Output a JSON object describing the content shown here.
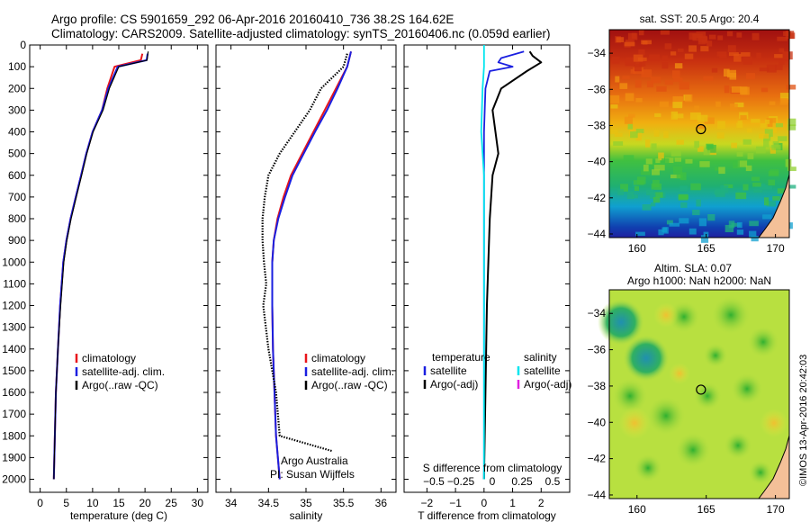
{
  "header": {
    "title_line1": "Argo profile: CS 5901659_292 06-Apr-2016 20160410_736 38.2S 164.62E",
    "title_line2": "Climatology: CARS2009. Satellite-adjusted climatology: synTS_20160406.nc (0.059d earlier)"
  },
  "footer": {
    "stamp": "©IMOS 13-Apr-2016 20:42:03"
  },
  "colors": {
    "climatology": "#e8151b",
    "satellite_adj": "#1a1fe0",
    "argo": "#000000",
    "cyan": "#00e5ee",
    "magenta": "#e020e0"
  },
  "chart_data": [
    {
      "type": "line",
      "xlabel": "temperature (deg C)",
      "xlim": [
        -2,
        32
      ],
      "xticks": [
        0,
        5,
        10,
        15,
        20,
        25,
        30
      ],
      "ylim": [
        0,
        2060
      ],
      "yticks": [
        0,
        100,
        200,
        300,
        400,
        500,
        600,
        700,
        800,
        900,
        1000,
        1100,
        1200,
        1300,
        1400,
        1500,
        1600,
        1700,
        1800,
        1900,
        2000
      ],
      "legend": [
        "climatology",
        "satellite-adj. clim.",
        "Argo(..raw -QC)"
      ],
      "legend_position": "lower-left",
      "series": [
        {
          "name": "climatology",
          "x": [
            19.5,
            19.2,
            14.2,
            12.8,
            11.8,
            10.0,
            8.8,
            7.8,
            6.8,
            5.8,
            5.0,
            4.4,
            3.8,
            3.4,
            3.0,
            2.6
          ],
          "y": [
            40,
            70,
            100,
            200,
            300,
            400,
            500,
            600,
            700,
            800,
            900,
            1000,
            1200,
            1400,
            1600,
            2000
          ]
        },
        {
          "name": "satellite-adj. clim.",
          "x": [
            20.5,
            20.3,
            14.8,
            13.0,
            11.8,
            10.0,
            8.8,
            7.8,
            6.8,
            5.8,
            5.0,
            4.4,
            3.8,
            3.4,
            3.0,
            2.6
          ],
          "y": [
            40,
            70,
            100,
            200,
            300,
            400,
            500,
            600,
            700,
            800,
            900,
            1000,
            1200,
            1400,
            1600,
            2000
          ]
        },
        {
          "name": "Argo(..raw -QC)",
          "x": [
            20.6,
            20.4,
            15.0,
            13.2,
            12.0,
            10.1,
            8.9,
            7.9,
            6.9,
            5.9,
            5.1,
            4.5,
            3.9,
            3.4,
            3.0,
            2.6
          ],
          "y": [
            30,
            70,
            100,
            200,
            300,
            400,
            500,
            600,
            700,
            800,
            900,
            1000,
            1200,
            1400,
            1600,
            2000
          ]
        }
      ]
    },
    {
      "type": "line",
      "xlabel": "salinity",
      "xlim": [
        33.8,
        36.2
      ],
      "xticks": [
        34,
        34.5,
        35,
        35.5,
        36
      ],
      "ylim": [
        0,
        2060
      ],
      "legend": [
        "climatology",
        "satellite-adj. clim.",
        "Argo(..raw -QC)"
      ],
      "legend_position": "lower-right",
      "annotations": [
        "Argo Australia",
        "PI: Susan Wijffels"
      ],
      "series": [
        {
          "name": "climatology",
          "x": [
            35.6,
            35.55,
            35.4,
            35.25,
            35.1,
            34.95,
            34.8,
            34.7,
            34.62,
            34.57,
            34.55,
            34.55,
            34.56,
            34.58,
            34.6,
            34.65
          ],
          "y": [
            30,
            100,
            200,
            300,
            400,
            500,
            600,
            700,
            800,
            900,
            1000,
            1200,
            1400,
            1600,
            1800,
            2000
          ]
        },
        {
          "name": "satellite-adj. clim.",
          "x": [
            35.6,
            35.55,
            35.42,
            35.28,
            35.12,
            34.97,
            34.82,
            34.72,
            34.63,
            34.57,
            34.55,
            34.55,
            34.56,
            34.58,
            34.6,
            34.65
          ],
          "y": [
            30,
            100,
            200,
            300,
            400,
            500,
            600,
            700,
            800,
            900,
            1000,
            1200,
            1400,
            1600,
            1800,
            2000
          ]
        },
        {
          "name": "Argo(..raw -QC)",
          "x": [
            35.55,
            35.5,
            35.2,
            35.05,
            34.85,
            34.65,
            34.5,
            34.45,
            34.42,
            34.42,
            34.44,
            34.47,
            34.43,
            34.5,
            34.6,
            34.65,
            35.35
          ],
          "y": [
            40,
            100,
            200,
            300,
            400,
            500,
            600,
            700,
            800,
            900,
            1000,
            1100,
            1200,
            1400,
            1600,
            1800,
            1870
          ]
        }
      ]
    },
    {
      "type": "line",
      "xlabel": "T difference from climatology",
      "xlabel_top": "S difference from climatology",
      "xlim": [
        -2.8,
        3.0
      ],
      "xticks": [
        -2,
        -1,
        0,
        1,
        2
      ],
      "xticks_top": [
        "-0.5",
        "-0.25",
        "0",
        "0.25",
        "0.5"
      ],
      "ylim": [
        0,
        2060
      ],
      "legend": [
        "temperature",
        "satellite",
        "Argo(-adj)",
        "salinity",
        "satellite",
        "Argo(-adj)"
      ],
      "legend_position": "lower-center",
      "series": [
        {
          "name": "satellite",
          "group": "temperature",
          "x": [
            1.4,
            0.6,
            0.5,
            1.0,
            0.2,
            0.05,
            0.0,
            0.0,
            0.0,
            0.0,
            0.0,
            0.0,
            0.0
          ],
          "y": [
            30,
            60,
            80,
            100,
            120,
            200,
            400,
            600,
            800,
            1200,
            1500,
            1800,
            2000
          ]
        },
        {
          "name": "Argo(-adj)",
          "group": "temperature",
          "x": [
            1.6,
            1.7,
            2.0,
            1.5,
            0.6,
            0.3,
            0.4,
            0.5,
            0.3,
            0.2,
            0.15,
            0.1,
            0.05,
            0.0
          ],
          "y": [
            30,
            50,
            80,
            120,
            200,
            300,
            400,
            500,
            600,
            800,
            1000,
            1200,
            1600,
            2000
          ]
        },
        {
          "name": "satellite",
          "group": "salinity",
          "x": [
            0.0,
            0.0,
            -0.05,
            -0.1,
            0.0,
            0.0,
            0.0,
            0.0
          ],
          "y": [
            0,
            100,
            200,
            400,
            600,
            1000,
            1500,
            2000
          ]
        }
      ]
    },
    {
      "type": "heatmap",
      "title": "sat. SST: 20.5 Argo: 20.4",
      "xticks": [
        160,
        165,
        170
      ],
      "yticks": [
        -34,
        -36,
        -38,
        -40,
        -42,
        -44
      ],
      "xlim": [
        158,
        171
      ],
      "ylim": [
        -44.2,
        -32.7
      ],
      "marker": {
        "x": 164.62,
        "y": -38.2
      }
    },
    {
      "type": "heatmap",
      "title_line1": "Altim. SLA: 0.07",
      "title_line2": "Argo h1000: NaN h2000: NaN",
      "xticks": [
        160,
        165,
        170
      ],
      "yticks": [
        -34,
        -36,
        -38,
        -40,
        -42,
        -44
      ],
      "xlim": [
        158,
        171
      ],
      "ylim": [
        -44.2,
        -32.7
      ],
      "marker": {
        "x": 164.62,
        "y": -38.2
      }
    }
  ]
}
